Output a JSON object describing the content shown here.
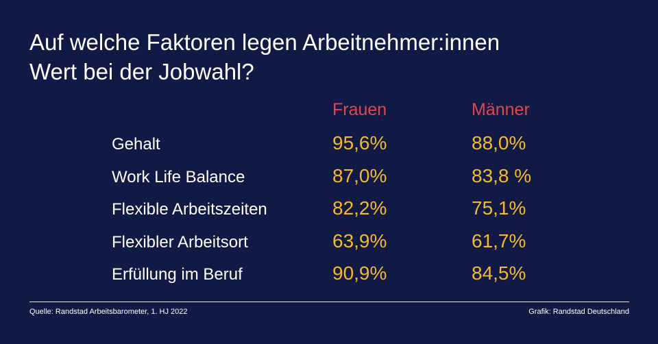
{
  "title_lines": [
    "Auf welche Faktoren legen Arbeitnehmer:innen",
    "Wert bei der Jobwahl?"
  ],
  "colors": {
    "background": "#111a45",
    "header": "#e0474c",
    "value": "#f5b82e",
    "text": "#ffffff"
  },
  "chart_data": {
    "type": "table",
    "title": "Auf welche Faktoren legen Arbeitnehmer:innen Wert bei der Jobwahl?",
    "columns": [
      "Frauen",
      "Männer"
    ],
    "rows": [
      {
        "label": "Gehalt",
        "values": [
          "95,6%",
          "88,0%"
        ]
      },
      {
        "label": "Work Life Balance",
        "values": [
          "87,0%",
          "83,8 %"
        ]
      },
      {
        "label": "Flexible Arbeitszeiten",
        "values": [
          "82,2%",
          "75,1%"
        ]
      },
      {
        "label": "Flexibler Arbeitsort",
        "values": [
          "63,9%",
          "61,7%"
        ]
      },
      {
        "label": "Erfüllung im Beruf",
        "values": [
          "90,9%",
          "84,5%"
        ]
      }
    ]
  },
  "footer": {
    "source": "Quelle: Randstad Arbeitsbarometer, 1. HJ 2022",
    "credit": "Grafik: Randstad Deutschland"
  }
}
